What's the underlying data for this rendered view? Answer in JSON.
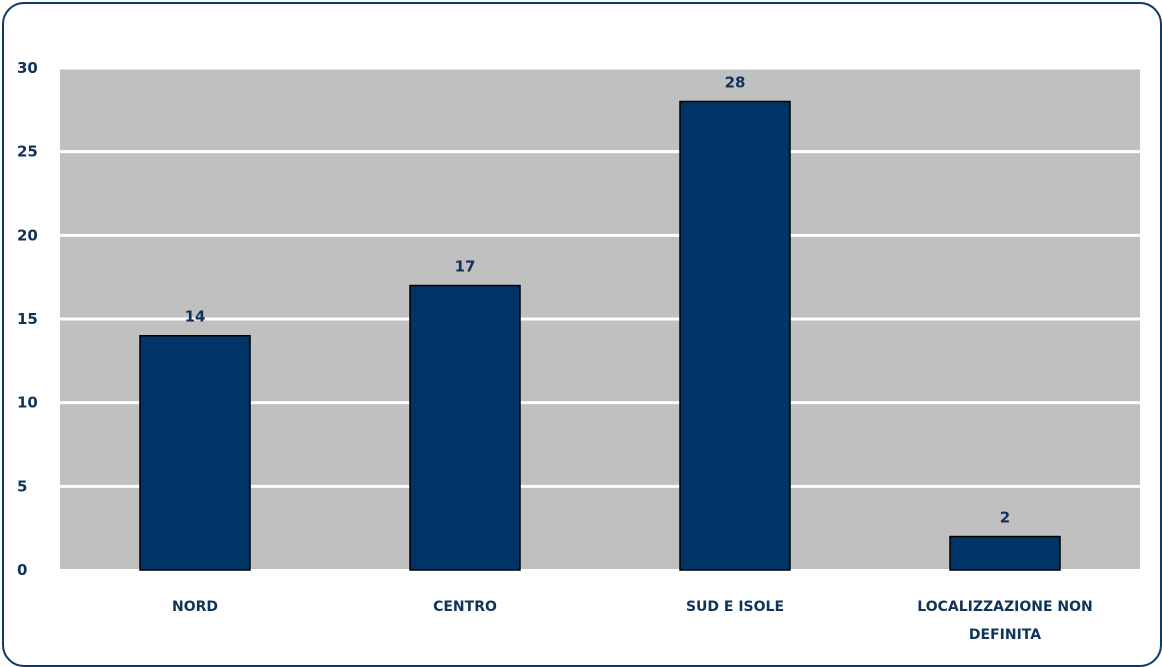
{
  "chart_data": {
    "type": "bar",
    "categories": [
      [
        "NORD"
      ],
      [
        "CENTRO"
      ],
      [
        "SUD E ISOLE"
      ],
      [
        "LOCALIZZAZIONE NON",
        "DEFINITA"
      ]
    ],
    "values": [
      14,
      17,
      28,
      2
    ],
    "title": "",
    "xlabel": "",
    "ylabel": "",
    "ylim": [
      0,
      30
    ],
    "yticks": [
      "0",
      "5",
      "10",
      "15",
      "20",
      "25",
      "30"
    ],
    "grid": true,
    "legend": "none",
    "colors": {
      "bar": "#003366",
      "bar_outline": "#000000",
      "plot_background": "#c0c0c0",
      "grid": "#ffffff",
      "text": "#0f3359",
      "frame": "#0b3a66"
    }
  }
}
